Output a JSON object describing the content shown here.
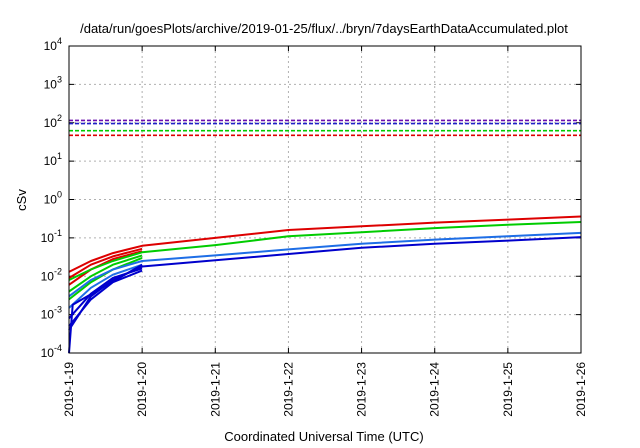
{
  "chart_data": {
    "type": "line",
    "title": "/data/run/goesPlots/archive/2019-01-25/flux/../bryn/7daysEarthDataAccumulated.plot",
    "xlabel": "Coordinated Universal Time (UTC)",
    "ylabel": "cSv",
    "y_scale": "log",
    "ylim": [
      0.0001,
      10000
    ],
    "y_ticks": [
      {
        "value": 0.0001,
        "base": "10",
        "exp": "-4"
      },
      {
        "value": 0.001,
        "base": "10",
        "exp": "-3"
      },
      {
        "value": 0.01,
        "base": "10",
        "exp": "-2"
      },
      {
        "value": 0.1,
        "base": "10",
        "exp": "-1"
      },
      {
        "value": 1,
        "base": "10",
        "exp": "0"
      },
      {
        "value": 10,
        "base": "10",
        "exp": "1"
      },
      {
        "value": 100,
        "base": "10",
        "exp": "2"
      },
      {
        "value": 1000,
        "base": "10",
        "exp": "3"
      },
      {
        "value": 10000,
        "base": "10",
        "exp": "4"
      }
    ],
    "x_ticks": [
      "2019-1-19",
      "2019-1-20",
      "2019-1-21",
      "2019-1-22",
      "2019-1-23",
      "2019-1-24",
      "2019-1-25",
      "2019-1-26"
    ],
    "x_unit": "days since 2019-1-19",
    "xlim": [
      0,
      7
    ],
    "grid": true,
    "legend": "none",
    "thresholds": [
      {
        "color": "#6a0dad",
        "value": 115
      },
      {
        "color": "#1e1ec8",
        "value": 95
      },
      {
        "color": "#00cc00",
        "value": 62
      },
      {
        "color": "#dd0000",
        "value": 47
      }
    ],
    "series": [
      {
        "color": "#dd0000",
        "x": [
          0,
          0.3,
          0.6,
          1,
          2,
          3,
          4,
          5,
          6,
          7
        ],
        "y": [
          0.013,
          0.025,
          0.04,
          0.062,
          0.1,
          0.16,
          0.2,
          0.25,
          0.3,
          0.36
        ]
      },
      {
        "color": "#dd0000",
        "x": [
          0,
          0.3,
          0.6,
          1
        ],
        "y": [
          0.009,
          0.02,
          0.033,
          0.052
        ]
      },
      {
        "color": "#dd0000",
        "x": [
          0,
          0.3,
          0.6,
          1
        ],
        "y": [
          0.006,
          0.015,
          0.028,
          0.045
        ]
      },
      {
        "color": "#00cc00",
        "x": [
          0,
          0.3,
          0.6,
          1,
          2,
          3,
          4,
          5,
          6,
          7
        ],
        "y": [
          0.008,
          0.015,
          0.025,
          0.042,
          0.065,
          0.11,
          0.14,
          0.18,
          0.22,
          0.26
        ]
      },
      {
        "color": "#00cc00",
        "x": [
          0,
          0.3,
          0.6,
          1
        ],
        "y": [
          0.004,
          0.01,
          0.02,
          0.035
        ]
      },
      {
        "color": "#00cc00",
        "x": [
          0,
          0.3,
          0.6,
          1
        ],
        "y": [
          0.0025,
          0.007,
          0.015,
          0.03
        ]
      },
      {
        "color": "#1e6ee6",
        "x": [
          0,
          0.3,
          0.6,
          1,
          2,
          3,
          4,
          5,
          6,
          7
        ],
        "y": [
          0.003,
          0.008,
          0.015,
          0.025,
          0.035,
          0.05,
          0.07,
          0.09,
          0.11,
          0.135
        ]
      },
      {
        "color": "#1e6ee6",
        "x": [
          0,
          0.3,
          0.6,
          1
        ],
        "y": [
          0.0015,
          0.005,
          0.011,
          0.02
        ]
      },
      {
        "color": "#0000cc",
        "x": [
          0,
          0.3,
          0.6,
          1,
          2,
          3,
          4,
          5,
          6,
          7
        ],
        "y": [
          0.0004,
          0.003,
          0.008,
          0.018,
          0.026,
          0.038,
          0.055,
          0.07,
          0.085,
          0.105
        ]
      },
      {
        "color": "#0000cc",
        "x": [
          0,
          0.3,
          0.6,
          1
        ],
        "y": [
          0.0008,
          0.0035,
          0.009,
          0.016
        ]
      },
      {
        "color": "#0000cc",
        "x": [
          0,
          0.3,
          0.6,
          1
        ],
        "y": [
          0.0005,
          0.0025,
          0.007,
          0.014
        ]
      },
      {
        "color": "#0000cc",
        "x": [
          0,
          0.05,
          1
        ],
        "y": [
          0.0001,
          0.0018,
          0.02
        ]
      }
    ]
  }
}
